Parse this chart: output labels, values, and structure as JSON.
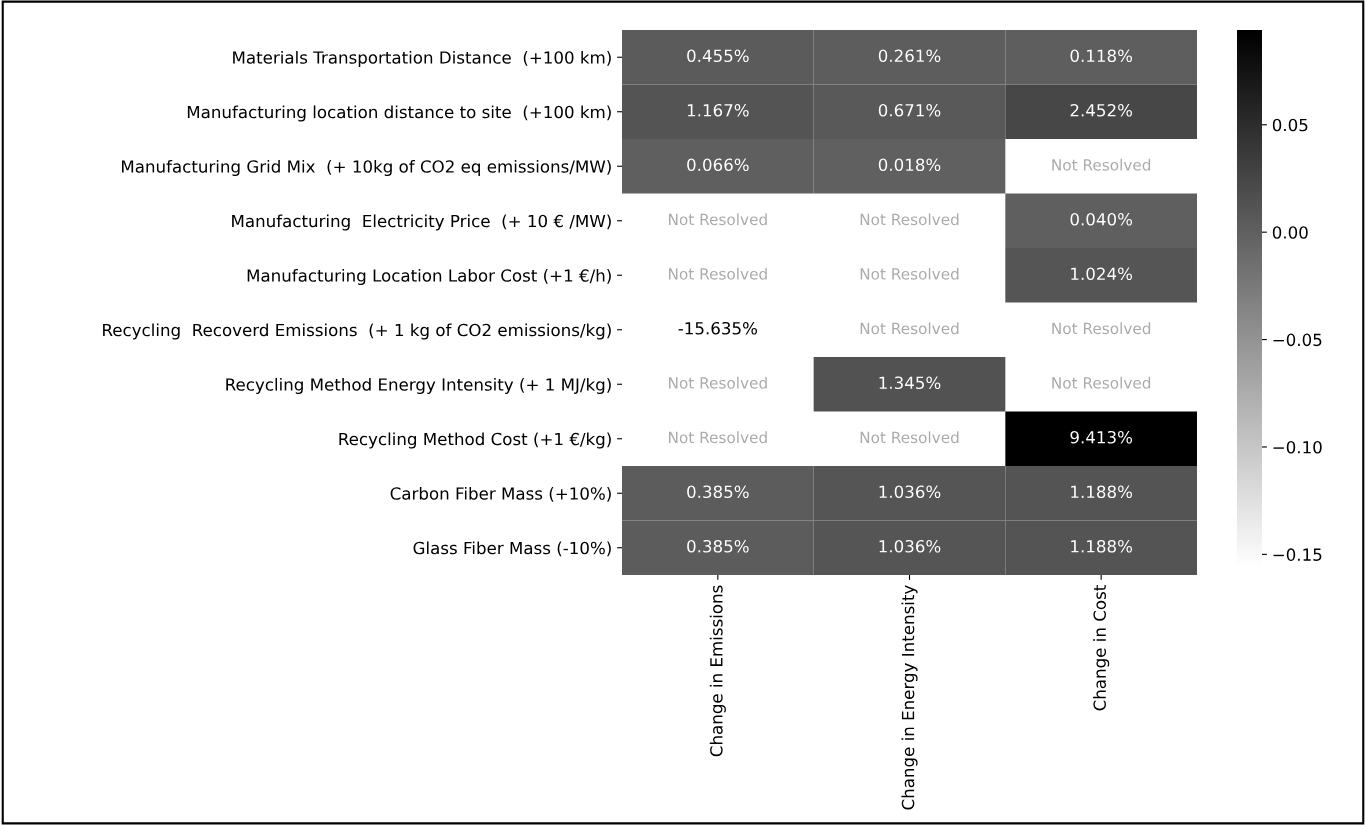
{
  "chart_data": {
    "type": "heatmap",
    "categories": [
      "Change in Emissions",
      "Change in Energy Intensity",
      "Change in Cost"
    ],
    "y_categories": [
      "Materials Transportation Distance  (+100 km)",
      "Manufacturing location distance to site  (+100 km)",
      "Manufacturing Grid Mix  (+ 10kg of CO2 eq emissions/MW)",
      "Manufacturing  Electricity Price  (+ 10 € /MW)",
      "Manufacturing Location Labor Cost (+1 €/h)",
      "Recycling  Recoverd Emissions  (+ 1 kg of CO2 emissions/kg)",
      "Recycling Method Energy Intensity (+ 1 MJ/kg)",
      "Recycling Method Cost (+1 €/kg)",
      "Carbon Fiber Mass (+10%)",
      "Glass Fiber Mass (-10%)"
    ],
    "cells": [
      [
        0.00455,
        0.00261,
        0.00118
      ],
      [
        0.01167,
        0.00671,
        0.02452
      ],
      [
        0.00066,
        0.00018,
        null
      ],
      [
        null,
        null,
        0.0004
      ],
      [
        null,
        null,
        0.01024
      ],
      [
        -0.15635,
        null,
        null
      ],
      [
        null,
        0.01345,
        null
      ],
      [
        null,
        null,
        0.09413
      ],
      [
        0.00385,
        0.01036,
        0.01188
      ],
      [
        0.00385,
        0.01036,
        0.01188
      ]
    ],
    "cell_labels": [
      [
        "0.455%",
        "0.261%",
        "0.118%"
      ],
      [
        "1.167%",
        "0.671%",
        "2.452%"
      ],
      [
        "0.066%",
        "0.018%",
        "Not Resolved"
      ],
      [
        "Not Resolved",
        "Not Resolved",
        "0.040%"
      ],
      [
        "Not Resolved",
        "Not Resolved",
        "1.024%"
      ],
      [
        "-15.635%",
        "Not Resolved",
        "Not Resolved"
      ],
      [
        "Not Resolved",
        "1.345%",
        "Not Resolved"
      ],
      [
        "Not Resolved",
        "Not Resolved",
        "9.413%"
      ],
      [
        "0.385%",
        "1.036%",
        "1.188%"
      ],
      [
        "0.385%",
        "1.036%",
        "1.188%"
      ]
    ],
    "clim": [
      -0.15635,
      0.09413
    ],
    "cticks": [
      {
        "value": 0.05,
        "label": "0.05"
      },
      {
        "value": 0.0,
        "label": "0.00"
      },
      {
        "value": -0.05,
        "label": "−0.05"
      },
      {
        "value": -0.1,
        "label": "−0.10"
      },
      {
        "value": -0.15,
        "label": "−0.15"
      }
    ]
  }
}
